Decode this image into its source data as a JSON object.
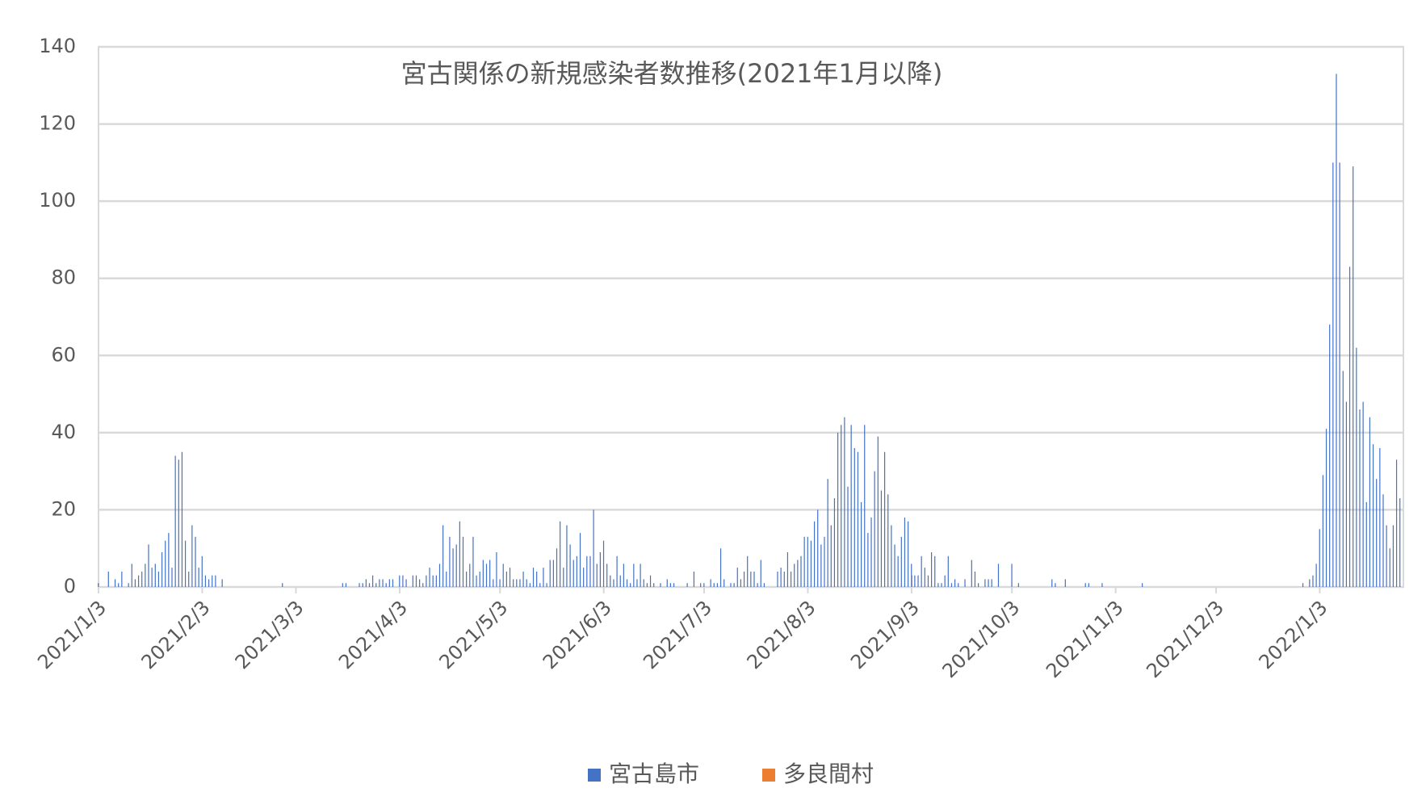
{
  "chart_data": {
    "type": "bar",
    "title": "宮古関係の新規感染者数推移(2021年1月以降)",
    "categories": [
      "2021/1/3",
      null,
      null,
      null,
      null,
      null,
      null,
      null,
      null,
      null,
      null,
      null,
      null,
      null,
      null,
      null,
      null,
      null,
      null,
      null,
      null,
      null,
      null,
      null,
      null,
      null,
      null,
      null,
      null,
      null,
      null,
      "2021/2/3",
      null,
      null,
      null,
      null,
      null,
      null,
      null,
      null,
      null,
      null,
      null,
      null,
      null,
      null,
      null,
      null,
      null,
      null,
      null,
      null,
      null,
      null,
      null,
      null,
      null,
      null,
      null,
      "2021/3/3",
      null,
      null,
      null,
      null,
      null,
      null,
      null,
      null,
      null,
      null,
      null,
      null,
      null,
      null,
      null,
      null,
      null,
      null,
      null,
      null,
      null,
      null,
      null,
      null,
      null,
      null,
      null,
      null,
      null,
      null,
      "2021/4/3",
      null,
      null,
      null,
      null,
      null,
      null,
      null,
      null,
      null,
      null,
      null,
      null,
      null,
      null,
      null,
      null,
      null,
      null,
      null,
      null,
      null,
      null,
      null,
      null,
      null,
      null,
      null,
      null,
      null,
      "2021/5/3",
      null,
      null,
      null,
      null,
      null,
      null,
      null,
      null,
      null,
      null,
      null,
      null,
      null,
      null,
      null,
      null,
      null,
      null,
      null,
      null,
      null,
      null,
      null,
      null,
      null,
      null,
      null,
      null,
      null,
      null,
      "2021/6/3",
      null,
      null,
      null,
      null,
      null,
      null,
      null,
      null,
      null,
      null,
      null,
      null,
      null,
      null,
      null,
      null,
      null,
      null,
      null,
      null,
      null,
      null,
      null,
      null,
      null,
      null,
      null,
      null,
      null,
      "2021/7/3",
      null,
      null,
      null,
      null,
      null,
      null,
      null,
      null,
      null,
      null,
      null,
      null,
      null,
      null,
      null,
      null,
      null,
      null,
      null,
      null,
      null,
      null,
      null,
      null,
      null,
      null,
      null,
      null,
      null,
      null,
      "2021/8/3",
      null,
      null,
      null,
      null,
      null,
      null,
      null,
      null,
      null,
      null,
      null,
      null,
      null,
      null,
      null,
      null,
      null,
      null,
      null,
      null,
      null,
      null,
      null,
      null,
      null,
      null,
      null,
      null,
      null,
      null,
      "2021/9/3",
      null,
      null,
      null,
      null,
      null,
      null,
      null,
      null,
      null,
      null,
      null,
      null,
      null,
      null,
      null,
      null,
      null,
      null,
      null,
      null,
      null,
      null,
      null,
      null,
      null,
      null,
      null,
      null,
      null,
      "2021/10/3",
      null,
      null,
      null,
      null,
      null,
      null,
      null,
      null,
      null,
      null,
      null,
      null,
      null,
      null,
      null,
      null,
      null,
      null,
      null,
      null,
      null,
      null,
      null,
      null,
      null,
      null,
      null,
      null,
      null,
      null,
      "2021/11/3",
      null,
      null,
      null,
      null,
      null,
      null,
      null,
      null,
      null,
      null,
      null,
      null,
      null,
      null,
      null,
      null,
      null,
      null,
      null,
      null,
      null,
      null,
      null,
      null,
      null,
      null,
      null,
      null,
      null,
      "2021/12/3",
      null,
      null,
      null,
      null,
      null,
      null,
      null,
      null,
      null,
      null,
      null,
      null,
      null,
      null,
      null,
      null,
      null,
      null,
      null,
      null,
      null,
      null,
      null,
      null,
      null,
      null,
      null,
      null,
      null,
      null,
      "2022/1/3",
      null,
      null,
      null,
      null,
      null,
      null,
      null,
      null,
      null,
      null,
      null,
      null,
      null,
      null,
      null,
      null,
      null,
      null,
      null,
      null,
      null,
      null,
      null,
      null
    ],
    "series": [
      {
        "name": "宮古島市",
        "color": "#4472c4",
        "values": [
          1,
          0,
          0,
          4,
          0,
          2,
          1,
          4,
          0,
          1,
          6,
          2,
          3,
          4,
          6,
          11,
          5,
          6,
          4,
          9,
          12,
          14,
          5,
          34,
          33,
          35,
          12,
          4,
          16,
          13,
          5,
          8,
          3,
          2,
          3,
          3,
          0,
          2,
          0,
          0,
          0,
          0,
          0,
          0,
          0,
          0,
          0,
          0,
          0,
          0,
          0,
          0,
          0,
          0,
          0,
          1,
          0,
          0,
          0,
          0,
          0,
          0,
          0,
          0,
          0,
          0,
          0,
          0,
          0,
          0,
          0,
          0,
          0,
          1,
          1,
          0,
          0,
          0,
          1,
          1,
          2,
          1,
          3,
          1,
          2,
          2,
          1,
          2,
          2,
          0,
          3,
          3,
          2,
          0,
          3,
          3,
          2,
          1,
          3,
          5,
          3,
          3,
          6,
          16,
          4,
          13,
          10,
          11,
          17,
          13,
          4,
          6,
          13,
          3,
          4,
          7,
          6,
          7,
          2,
          9,
          2,
          6,
          4,
          5,
          2,
          2,
          2,
          4,
          2,
          1,
          5,
          4,
          1,
          5,
          1,
          7,
          7,
          10,
          17,
          5,
          16,
          11,
          7,
          8,
          14,
          5,
          8,
          8,
          20,
          6,
          9,
          12,
          6,
          3,
          2,
          8,
          3,
          6,
          2,
          1,
          6,
          2,
          6,
          2,
          1,
          3,
          1,
          0,
          1,
          0,
          2,
          1,
          1,
          0,
          0,
          0,
          1,
          0,
          4,
          0,
          1,
          1,
          0,
          2,
          1,
          1,
          10,
          2,
          0,
          1,
          1,
          5,
          2,
          4,
          8,
          4,
          4,
          1,
          7,
          1,
          0,
          0,
          0,
          4,
          5,
          4,
          9,
          4,
          6,
          7,
          8,
          13,
          13,
          12,
          17,
          20,
          11,
          13,
          28,
          16,
          23,
          40,
          42,
          44,
          26,
          42,
          36,
          35,
          22,
          42,
          14,
          18,
          30,
          39,
          25,
          35,
          24,
          16,
          11,
          8,
          13,
          18,
          17,
          6,
          3,
          3,
          8,
          5,
          3,
          9,
          8,
          1,
          1,
          3,
          8,
          1,
          2,
          1,
          0,
          2,
          0,
          7,
          4,
          1,
          0,
          2,
          2,
          2,
          0,
          6,
          0,
          0,
          0,
          6,
          0,
          1,
          0,
          0,
          0,
          0,
          0,
          0,
          0,
          0,
          0,
          2,
          1,
          0,
          0,
          2,
          0,
          0,
          0,
          0,
          0,
          1,
          1,
          0,
          0,
          0,
          1,
          0,
          0,
          0,
          0,
          0,
          0,
          0,
          0,
          0,
          0,
          0,
          1,
          0,
          0,
          0,
          0,
          0,
          0,
          0,
          0,
          0,
          0,
          0,
          0,
          0,
          0,
          0,
          0,
          0,
          0,
          0,
          0,
          0,
          0,
          0,
          0,
          0,
          0,
          0,
          0,
          0,
          0,
          0,
          0,
          0,
          0,
          0,
          0,
          0,
          0,
          0,
          0,
          0,
          0,
          0,
          0,
          0,
          0,
          0,
          1,
          0,
          2,
          3,
          6,
          15,
          29,
          41,
          68,
          110,
          133,
          110,
          56,
          48,
          83,
          109,
          62,
          46,
          48,
          22,
          44,
          37,
          28,
          36,
          24,
          16,
          10,
          16,
          33,
          23
        ]
      },
      {
        "name": "多良間村",
        "color": "#ed7d31",
        "values": [
          0,
          0,
          0,
          0,
          0,
          0,
          0,
          0,
          0,
          0,
          0,
          0,
          0,
          0,
          0,
          0,
          0,
          0,
          0,
          0,
          0,
          0,
          0,
          0,
          0,
          0,
          0,
          0,
          0,
          0,
          0,
          0,
          0,
          0,
          0,
          0,
          0,
          0,
          0,
          0,
          0,
          0,
          0,
          0,
          0,
          0,
          0,
          0,
          0,
          0,
          0,
          0,
          0,
          0,
          0,
          0,
          0,
          0,
          0,
          0,
          0,
          0,
          0,
          0,
          0,
          0,
          0,
          0,
          0,
          0,
          0,
          0,
          0,
          0,
          0,
          0,
          0,
          0,
          0,
          0,
          0,
          0,
          0,
          0,
          0,
          0,
          0,
          0,
          0,
          0,
          0,
          0,
          0,
          0,
          0,
          0,
          0,
          0,
          0,
          0,
          0,
          0,
          0,
          0,
          0,
          0,
          0,
          0,
          0,
          0,
          0,
          0,
          0,
          0,
          0,
          0,
          0,
          0,
          0,
          0,
          0,
          0,
          0,
          0,
          0,
          0,
          0,
          0,
          0,
          0,
          0,
          0,
          0,
          0,
          0,
          0,
          0,
          0,
          0,
          0,
          0,
          0,
          0,
          0,
          0,
          0,
          0,
          0,
          0,
          0,
          0,
          0,
          0,
          0,
          0,
          0,
          0,
          0,
          0,
          0,
          0,
          0,
          0,
          0,
          0,
          0,
          0,
          0,
          0,
          0,
          0,
          0,
          0,
          0,
          0,
          0,
          0,
          0,
          0,
          0,
          0,
          0,
          0,
          0,
          0,
          0,
          0,
          0,
          0,
          0,
          0,
          0,
          0,
          0,
          0,
          0,
          0,
          0,
          0,
          0,
          0,
          0,
          0,
          0,
          0,
          0,
          0,
          0,
          0,
          0,
          0,
          0,
          0,
          0,
          0,
          0,
          0,
          0,
          0,
          0,
          0,
          0,
          0,
          0,
          0,
          0,
          0,
          0,
          0,
          0,
          0,
          0,
          0,
          0,
          0,
          0,
          0,
          0,
          0,
          0,
          0,
          0,
          0,
          3,
          0,
          0,
          0,
          0,
          0,
          0,
          0,
          0,
          0,
          0,
          0,
          0,
          0,
          0,
          0,
          0,
          0,
          0,
          0,
          0,
          0,
          0,
          0,
          0,
          0,
          0,
          0,
          0,
          0,
          0,
          0,
          0,
          0,
          0,
          0,
          0,
          0,
          0,
          0,
          0,
          0,
          0,
          0,
          0,
          0,
          0,
          0,
          0,
          0,
          0,
          0,
          0,
          0,
          0,
          0,
          0,
          0,
          0,
          0,
          0,
          0,
          0,
          0,
          0,
          0,
          0,
          0,
          0,
          0,
          0,
          0,
          0,
          0,
          0,
          0,
          0,
          0,
          0,
          0,
          0,
          0,
          0,
          0,
          0,
          0,
          0,
          0,
          0,
          0,
          0,
          0,
          0,
          0,
          0,
          0,
          0,
          0,
          0,
          0,
          0,
          0,
          0,
          0,
          0,
          0,
          0,
          0,
          0,
          0,
          0,
          0,
          0,
          0,
          0,
          0,
          0,
          0,
          0,
          0,
          0,
          0,
          0,
          0,
          0,
          0,
          0,
          0,
          0,
          0,
          0,
          0,
          0,
          0,
          0,
          0,
          0,
          0,
          0,
          0,
          0,
          0,
          0,
          0,
          0,
          0,
          0
        ]
      }
    ],
    "ylim": [
      0,
      140
    ],
    "yticks": [
      0,
      20,
      40,
      60,
      80,
      100,
      120,
      140
    ],
    "grid": true,
    "legend": "bottom"
  }
}
